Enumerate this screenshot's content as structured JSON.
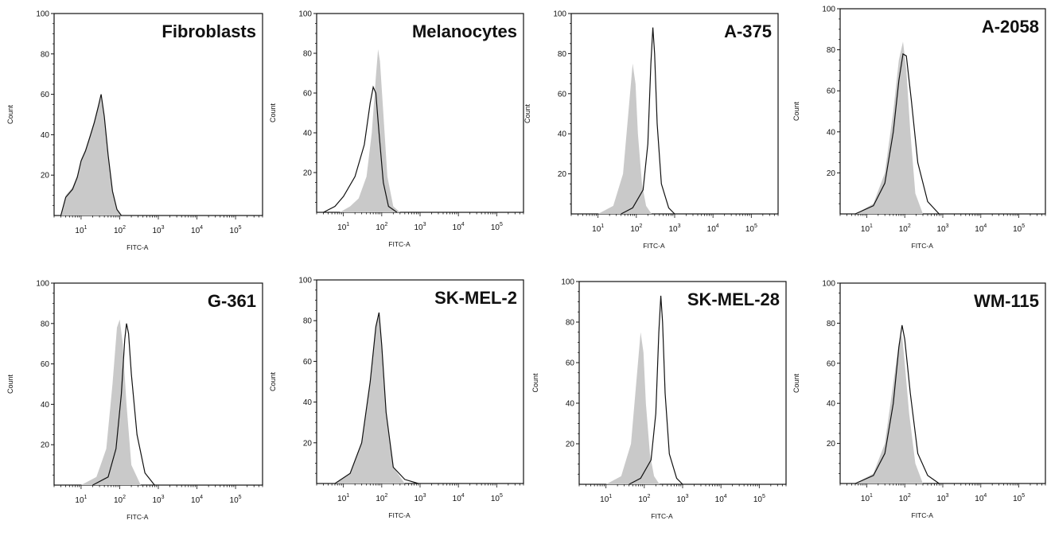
{
  "colors": {
    "isotype_fill": "#c9c9c9",
    "stain_line": "#111111",
    "frame": "#111111"
  },
  "chart_data": [
    {
      "type": "area",
      "title": "Fibroblasts",
      "xlabel": "FITC-A",
      "ylabel": "Count",
      "x_scale": "log",
      "xlim": [
        2,
        500000
      ],
      "ylim": [
        0,
        100
      ],
      "x_ticks": [
        "10^1",
        "10^2",
        "10^3",
        "10^4",
        "10^5"
      ],
      "y_ticks": [
        "20",
        "40",
        "60",
        "80",
        "100"
      ],
      "series": [
        {
          "role": "isotype-filled",
          "x": [
            3,
            4,
            6,
            8,
            10,
            13,
            17,
            22,
            28,
            33,
            40,
            50,
            65,
            85,
            110
          ],
          "y": [
            0,
            10,
            14,
            20,
            28,
            33,
            40,
            47,
            55,
            58,
            48,
            30,
            12,
            3,
            0
          ]
        },
        {
          "role": "stain-outline",
          "x": [
            3,
            4,
            6,
            8,
            10,
            13,
            17,
            22,
            28,
            33,
            40,
            50,
            65,
            85,
            110
          ],
          "y": [
            0,
            9,
            13,
            19,
            27,
            32,
            39,
            46,
            54,
            60,
            49,
            30,
            12,
            3,
            0
          ]
        }
      ]
    },
    {
      "type": "area",
      "title": "Melanocytes",
      "xlabel": "FITC-A",
      "ylabel": "Count",
      "x_scale": "log",
      "xlim": [
        2,
        500000
      ],
      "ylim": [
        0,
        100
      ],
      "x_ticks": [
        "10^1",
        "10^2",
        "10^3",
        "10^4",
        "10^5"
      ],
      "y_ticks": [
        "20",
        "40",
        "60",
        "80",
        "100"
      ],
      "series": [
        {
          "role": "isotype-filled",
          "x": [
            8,
            15,
            25,
            40,
            55,
            70,
            80,
            90,
            110,
            140,
            200,
            300
          ],
          "y": [
            0,
            3,
            7,
            18,
            40,
            68,
            82,
            76,
            50,
            18,
            3,
            0
          ]
        },
        {
          "role": "stain-outline",
          "x": [
            3,
            6,
            10,
            20,
            35,
            50,
            60,
            70,
            85,
            110,
            150,
            250
          ],
          "y": [
            0,
            3,
            8,
            18,
            34,
            55,
            63,
            60,
            40,
            15,
            3,
            0
          ]
        }
      ]
    },
    {
      "type": "area",
      "title": "A-375",
      "xlabel": "FITC-A",
      "ylabel": "Count",
      "x_scale": "log",
      "xlim": [
        2,
        500000
      ],
      "ylim": [
        0,
        100
      ],
      "x_ticks": [
        "10^1",
        "10^2",
        "10^3",
        "10^4",
        "10^5"
      ],
      "y_ticks": [
        "20",
        "40",
        "60",
        "80",
        "100"
      ],
      "series": [
        {
          "role": "isotype-filled",
          "x": [
            10,
            25,
            45,
            65,
            80,
            95,
            110,
            140,
            180,
            250
          ],
          "y": [
            0,
            4,
            20,
            55,
            75,
            65,
            40,
            15,
            4,
            0
          ]
        },
        {
          "role": "stain-outline",
          "x": [
            40,
            80,
            150,
            200,
            240,
            270,
            300,
            350,
            450,
            700,
            1000
          ],
          "y": [
            0,
            3,
            12,
            35,
            75,
            93,
            80,
            45,
            15,
            3,
            0
          ]
        }
      ]
    },
    {
      "type": "area",
      "title": "A-2058",
      "xlabel": "FITC-A",
      "ylabel": "Count",
      "x_scale": "log",
      "xlim": [
        2,
        500000
      ],
      "ylim": [
        0,
        100
      ],
      "x_ticks": [
        "10^1",
        "10^2",
        "10^3",
        "10^4",
        "10^5"
      ],
      "y_ticks": [
        "20",
        "40",
        "60",
        "80",
        "100"
      ],
      "series": [
        {
          "role": "isotype-filled",
          "x": [
            5,
            15,
            30,
            50,
            70,
            90,
            110,
            140,
            190,
            300
          ],
          "y": [
            0,
            5,
            20,
            50,
            75,
            84,
            70,
            40,
            10,
            0
          ]
        },
        {
          "role": "stain-outline",
          "x": [
            5,
            15,
            30,
            50,
            70,
            90,
            110,
            150,
            220,
            400,
            800
          ],
          "y": [
            0,
            4,
            15,
            40,
            65,
            78,
            77,
            55,
            25,
            6,
            0
          ]
        }
      ]
    },
    {
      "type": "area",
      "title": "G-361",
      "xlabel": "FITC-A",
      "ylabel": "Count",
      "x_scale": "log",
      "xlim": [
        2,
        500000
      ],
      "ylim": [
        0,
        100
      ],
      "x_ticks": [
        "10^1",
        "10^2",
        "10^3",
        "10^4",
        "10^5"
      ],
      "y_ticks": [
        "20",
        "40",
        "60",
        "80",
        "100"
      ],
      "series": [
        {
          "role": "isotype-filled",
          "x": [
            10,
            25,
            45,
            65,
            85,
            100,
            120,
            150,
            200,
            350
          ],
          "y": [
            0,
            4,
            18,
            50,
            78,
            82,
            70,
            40,
            10,
            0
          ]
        },
        {
          "role": "stain-outline",
          "x": [
            20,
            50,
            80,
            110,
            135,
            150,
            170,
            200,
            280,
            450,
            800
          ],
          "y": [
            0,
            4,
            18,
            45,
            72,
            80,
            75,
            55,
            25,
            6,
            0
          ]
        }
      ]
    },
    {
      "type": "area",
      "title": "SK-MEL-2",
      "xlabel": "FITC-A",
      "ylabel": "Count",
      "x_scale": "log",
      "xlim": [
        2,
        500000
      ],
      "ylim": [
        0,
        100
      ],
      "x_ticks": [
        "10^1",
        "10^2",
        "10^3",
        "10^4",
        "10^5"
      ],
      "y_ticks": [
        "20",
        "40",
        "60",
        "80",
        "100"
      ],
      "series": [
        {
          "role": "isotype-filled",
          "x": [
            6,
            15,
            30,
            50,
            70,
            85,
            100,
            130,
            200,
            400
          ],
          "y": [
            0,
            5,
            20,
            50,
            78,
            82,
            68,
            35,
            8,
            0
          ]
        },
        {
          "role": "stain-outline",
          "x": [
            6,
            15,
            30,
            50,
            70,
            85,
            100,
            130,
            200,
            400,
            900
          ],
          "y": [
            0,
            5,
            20,
            50,
            77,
            84,
            68,
            35,
            8,
            2,
            0
          ]
        }
      ]
    },
    {
      "type": "area",
      "title": "SK-MEL-28",
      "xlabel": "FITC-A",
      "ylabel": "Count",
      "x_scale": "log",
      "xlim": [
        2,
        500000
      ],
      "ylim": [
        0,
        100
      ],
      "x_ticks": [
        "10^1",
        "10^2",
        "10^3",
        "10^4",
        "10^5"
      ],
      "y_ticks": [
        "20",
        "40",
        "60",
        "80",
        "100"
      ],
      "series": [
        {
          "role": "isotype-filled",
          "x": [
            10,
            25,
            45,
            65,
            80,
            95,
            110,
            140,
            180,
            250
          ],
          "y": [
            0,
            4,
            20,
            55,
            75,
            65,
            40,
            15,
            4,
            0
          ]
        },
        {
          "role": "stain-outline",
          "x": [
            40,
            80,
            150,
            200,
            240,
            270,
            300,
            350,
            450,
            700,
            1000
          ],
          "y": [
            0,
            3,
            12,
            35,
            75,
            93,
            80,
            45,
            15,
            3,
            0
          ]
        }
      ]
    },
    {
      "type": "area",
      "title": "WM-115",
      "xlabel": "FITC-A",
      "ylabel": "Count",
      "x_scale": "log",
      "xlim": [
        2,
        500000
      ],
      "ylim": [
        0,
        100
      ],
      "x_ticks": [
        "10^1",
        "10^2",
        "10^3",
        "10^4",
        "10^5"
      ],
      "y_ticks": [
        "20",
        "40",
        "60",
        "80",
        "100"
      ],
      "series": [
        {
          "role": "isotype-filled",
          "x": [
            5,
            15,
            30,
            50,
            70,
            85,
            100,
            130,
            190,
            300
          ],
          "y": [
            0,
            5,
            20,
            50,
            70,
            74,
            60,
            35,
            10,
            0
          ]
        },
        {
          "role": "stain-outline",
          "x": [
            5,
            15,
            30,
            50,
            70,
            85,
            100,
            140,
            220,
            400,
            800
          ],
          "y": [
            0,
            4,
            15,
            40,
            68,
            79,
            72,
            45,
            15,
            4,
            0
          ]
        }
      ]
    }
  ]
}
